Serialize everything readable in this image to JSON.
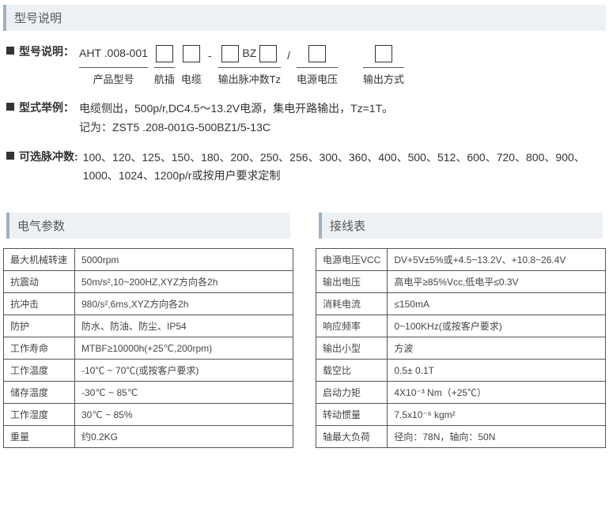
{
  "section1": {
    "title": "型号说明"
  },
  "modelRow": {
    "label": "型号说明：",
    "base": "AHT .008-001",
    "base_cap": "产品型号",
    "cap_plug": "航插",
    "cap_cable": "电缆",
    "mid_text": "BZ",
    "cap_tz": "输出脉冲数Tz",
    "cap_volt": "电源电压",
    "cap_out": "输出方式",
    "dash": "-",
    "slash": "/"
  },
  "example": {
    "label": "型式举例：",
    "line1": "电缆侧出，500p/r,DC4.5～13.2V电源，集电开路输出，Tz=1T。",
    "line2": "记为：ZST5 .208-001G-500BZ1/5-13C"
  },
  "pulses": {
    "label": "可选脉冲数:",
    "text": "100、120、125、150、180、200、250、256、300、360、400、500、512、600、720、800、900、1000、1024、1200p/r或按用户要求定制"
  },
  "elec": {
    "title": "电气参数",
    "rows": [
      [
        "最大机械转速",
        "5000rpm"
      ],
      [
        "抗震动",
        "50m/s²,10~200HZ,XYZ方向各2h"
      ],
      [
        "抗冲击",
        "980/s²,6ms,XYZ方向各2h"
      ],
      [
        "防护",
        "防水、防油、防尘、IP54"
      ],
      [
        "工作寿命",
        "MTBF≥10000h(+25℃,200rpm)"
      ],
      [
        "工作温度",
        "-10℃ ~ 70℃(或按客户要求)"
      ],
      [
        "储存温度",
        "-30℃ ~ 85℃"
      ],
      [
        "工作湿度",
        "30℃ ~ 85%"
      ],
      [
        "重量",
        "约0.2KG"
      ]
    ]
  },
  "wire": {
    "title": "接线表",
    "rows": [
      [
        "电源电压VCC",
        "DV+5V±5%或+4.5~13.2V、+10.8~26.4V"
      ],
      [
        "输出电压",
        "高电平≥85%Vcc,低电平≤0.3V"
      ],
      [
        "消耗电流",
        "≤150mA"
      ],
      [
        "响应频率",
        "0~100KHz(或按客户要求)"
      ],
      [
        "输出小型",
        "方波"
      ],
      [
        "载空比",
        "0.5± 0.1T"
      ],
      [
        "启动力矩",
        "4X10⁻³ Nm（+25℃）"
      ],
      [
        "转动惯量",
        "7.5x10⁻⁶ kgm²"
      ],
      [
        "轴最大负荷",
        "径向：78N，轴向：50N"
      ]
    ]
  }
}
